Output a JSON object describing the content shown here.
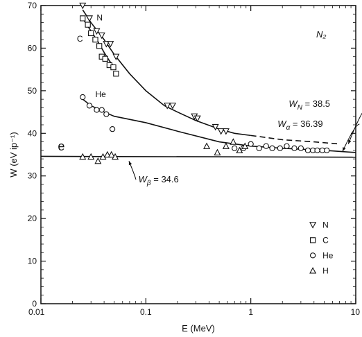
{
  "chart_data": {
    "type": "scatter",
    "title": "N₂",
    "xlabel": "E (MeV)",
    "ylabel": "W (eV ip⁻¹)",
    "xscale": "log",
    "xlim": [
      0.01,
      10
    ],
    "ylim": [
      0,
      70
    ],
    "x_ticks": [
      0.01,
      0.1,
      1,
      10
    ],
    "x_tick_labels": [
      "0.01",
      "0.1",
      "1",
      "10"
    ],
    "y_ticks": [
      0,
      10,
      20,
      30,
      40,
      50,
      60,
      70
    ],
    "y_tick_labels": [
      "0",
      "10",
      "20",
      "30",
      "40",
      "50",
      "60",
      "70"
    ],
    "grid": false,
    "legend_position": "bottom-right",
    "series": [
      {
        "name": "N",
        "marker": "triangle-down",
        "x": [
          0.025,
          0.029,
          0.034,
          0.038,
          0.042,
          0.046,
          0.052,
          0.16,
          0.18,
          0.29,
          0.31,
          0.46,
          0.52,
          0.58
        ],
        "y": [
          70,
          67,
          64,
          63,
          61,
          61,
          58,
          46.5,
          46.5,
          44,
          43.5,
          41.5,
          40.5,
          40.5
        ]
      },
      {
        "name": "C",
        "marker": "square",
        "x": [
          0.025,
          0.028,
          0.03,
          0.033,
          0.036,
          0.038,
          0.041,
          0.045,
          0.049,
          0.052
        ],
        "y": [
          67,
          65.5,
          63.5,
          62,
          60.5,
          58,
          57.5,
          56,
          55.5,
          54
        ]
      },
      {
        "name": "He",
        "marker": "circle",
        "x": [
          0.025,
          0.029,
          0.034,
          0.038,
          0.042,
          0.048,
          0.7,
          0.85,
          1.0,
          1.2,
          1.4,
          1.6,
          1.9,
          2.2,
          2.6,
          3.0,
          3.5,
          3.9,
          4.3,
          4.8,
          5.3
        ],
        "y": [
          48.5,
          46.5,
          45.5,
          45.5,
          44.5,
          41,
          36.5,
          36.5,
          37.5,
          36.5,
          37,
          36.5,
          36.5,
          37,
          36.5,
          36.5,
          36,
          36,
          36,
          36,
          36
        ]
      },
      {
        "name": "H",
        "marker": "triangle-up",
        "x": [
          0.025,
          0.03,
          0.035,
          0.039,
          0.043,
          0.047,
          0.051,
          0.38,
          0.48,
          0.58,
          0.68,
          0.78,
          0.88
        ],
        "y": [
          34.5,
          34.5,
          33.5,
          34.5,
          35,
          35,
          34.5,
          37,
          35.5,
          37,
          38,
          36,
          37
        ]
      }
    ],
    "curves": [
      {
        "name": "N",
        "style": "solid-then-dashed",
        "dash_from_x": 1.0,
        "x": [
          0.025,
          0.03,
          0.04,
          0.05,
          0.07,
          0.1,
          0.15,
          0.2,
          0.3,
          0.5,
          0.7,
          1.0,
          2.0,
          4.0,
          7.0
        ],
        "y": [
          69,
          66,
          62,
          58.5,
          54,
          50,
          46.5,
          45,
          43,
          41,
          40,
          39.5,
          38.5,
          38,
          37.5
        ]
      },
      {
        "name": "C",
        "style": "solid",
        "x": [
          0.025,
          0.03,
          0.035,
          0.04,
          0.045,
          0.052
        ],
        "y": [
          67,
          64,
          61.5,
          59,
          57,
          55
        ]
      },
      {
        "name": "He",
        "style": "solid",
        "x": [
          0.025,
          0.03,
          0.04,
          0.05,
          0.1,
          0.2,
          0.5,
          1.0,
          2.0,
          5.0,
          10.0
        ],
        "y": [
          48,
          46.5,
          45,
          44,
          42.5,
          40.5,
          38,
          37,
          36.5,
          36,
          35.5
        ]
      },
      {
        "name": "H",
        "style": "solid",
        "x": [
          0.01,
          10.0
        ],
        "y": [
          34.6,
          34.4
        ]
      }
    ],
    "curve_labels": [
      {
        "text": "N",
        "x": 0.034,
        "y": 66.5
      },
      {
        "text": "C",
        "x": 0.022,
        "y": 61.5
      },
      {
        "text": "He",
        "x": 0.033,
        "y": 48.5
      }
    ],
    "annotations": [
      {
        "symbol": "W",
        "sub": "N",
        "value": "= 38.5",
        "x": 2.3,
        "y": 46.2,
        "arrow_to": [
          8.5,
          37.5
        ]
      },
      {
        "symbol": "W",
        "sub": "α",
        "value": "= 36.39",
        "x": 1.8,
        "y": 41.5,
        "arrow_to": [
          7.5,
          35.8
        ]
      },
      {
        "symbol": "W",
        "sub": "β",
        "value": "= 34.6",
        "x": 0.085,
        "y": 28.5,
        "arrow_to": [
          0.069,
          33.5
        ]
      }
    ],
    "stray_label": {
      "text": "e",
      "x": 0.0145,
      "y": 36
    }
  }
}
